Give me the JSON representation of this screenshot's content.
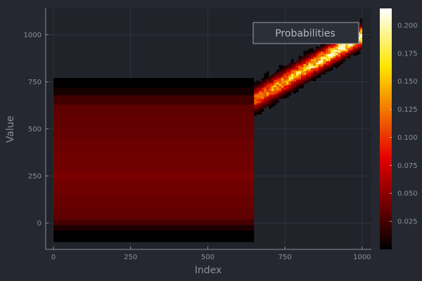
{
  "chart_data": {
    "type": "heatmap",
    "title": "",
    "xlabel": "Index",
    "ylabel": "Value",
    "xlim": [
      -25,
      1030
    ],
    "ylim": [
      -140,
      1140
    ],
    "xticks": [
      0,
      250,
      500,
      750,
      1000
    ],
    "yticks": [
      0,
      250,
      500,
      750,
      1000
    ],
    "grid": true,
    "legend": {
      "label": "Probabilities",
      "placement": "top-right"
    },
    "colorbar": {
      "colormap": "hot",
      "min": 0.0,
      "max": 0.215,
      "ticks": [
        0.025,
        0.05,
        0.075,
        0.1,
        0.125,
        0.15,
        0.175,
        0.2
      ],
      "tick_labels": [
        "0.025",
        "0.050",
        "0.075",
        "0.100",
        "0.125",
        "0.150",
        "0.175",
        "0.200"
      ]
    },
    "regions": [
      {
        "name": "uniform",
        "x_range": [
          0,
          650
        ],
        "y_range": [
          -100,
          770
        ],
        "profile": [
          {
            "y0": -100,
            "y1": -40,
            "p": 0.0
          },
          {
            "y0": -40,
            "y1": -10,
            "p": 0.01
          },
          {
            "y0": -10,
            "y1": 20,
            "p": 0.025
          },
          {
            "y0": 20,
            "y1": 80,
            "p": 0.034
          },
          {
            "y0": 80,
            "y1": 150,
            "p": 0.037
          },
          {
            "y0": 150,
            "y1": 200,
            "p": 0.039
          },
          {
            "y0": 200,
            "y1": 240,
            "p": 0.041
          },
          {
            "y0": 240,
            "y1": 270,
            "p": 0.044
          },
          {
            "y0": 270,
            "y1": 310,
            "p": 0.041
          },
          {
            "y0": 310,
            "y1": 380,
            "p": 0.039
          },
          {
            "y0": 380,
            "y1": 450,
            "p": 0.038
          },
          {
            "y0": 450,
            "y1": 520,
            "p": 0.036
          },
          {
            "y0": 520,
            "y1": 580,
            "p": 0.035
          },
          {
            "y0": 580,
            "y1": 630,
            "p": 0.033
          },
          {
            "y0": 630,
            "y1": 680,
            "p": 0.023
          },
          {
            "y0": 680,
            "y1": 720,
            "p": 0.008
          },
          {
            "y0": 720,
            "y1": 770,
            "p": 0.0
          }
        ]
      },
      {
        "name": "band",
        "x_range": [
          650,
          1000
        ],
        "center_start": 660,
        "center_end": 1000,
        "spread_start": 90,
        "spread_end": 80,
        "peak_start": 0.12,
        "peak_end": 0.21,
        "column_width": 8
      }
    ]
  }
}
